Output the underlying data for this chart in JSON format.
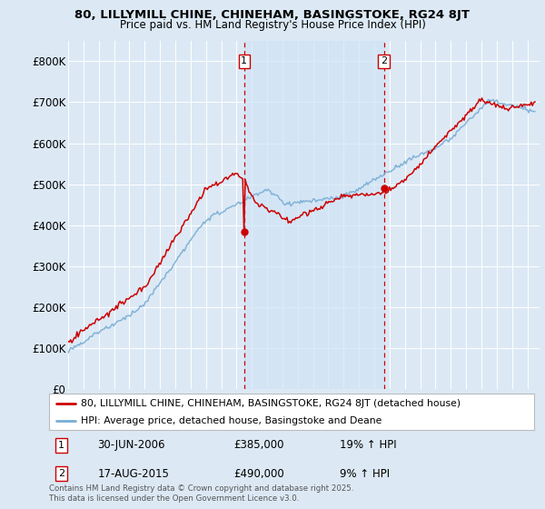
{
  "title1": "80, LILLYMILL CHINE, CHINEHAM, BASINGSTOKE, RG24 8JT",
  "title2": "Price paid vs. HM Land Registry's House Price Index (HPI)",
  "bg_color": "#dce9f5",
  "legend_label_red": "80, LILLYMILL CHINE, CHINEHAM, BASINGSTOKE, RG24 8JT (detached house)",
  "legend_label_blue": "HPI: Average price, detached house, Basingstoke and Deane",
  "footnote": "Contains HM Land Registry data © Crown copyright and database right 2025.\nThis data is licensed under the Open Government Licence v3.0.",
  "marker1_date": "30-JUN-2006",
  "marker1_price": "£385,000",
  "marker1_hpi": "19% ↑ HPI",
  "marker2_date": "17-AUG-2015",
  "marker2_price": "£490,000",
  "marker2_hpi": "9% ↑ HPI",
  "ylim": [
    0,
    850000
  ],
  "yticks": [
    0,
    100000,
    200000,
    300000,
    400000,
    500000,
    600000,
    700000,
    800000
  ],
  "ytick_labels": [
    "£0",
    "£100K",
    "£200K",
    "£300K",
    "£400K",
    "£500K",
    "£600K",
    "£700K",
    "£800K"
  ],
  "red_color": "#cc0000",
  "blue_color": "#7aadd4",
  "blue_fill": "#d0e4f5",
  "marker_box_color": "#cc0000",
  "dashed_line_color": "#cc0000",
  "marker1_x": 2006.5,
  "marker1_y": 385000,
  "marker2_x": 2015.63,
  "marker2_y": 490000,
  "xlim_start": 1995,
  "xlim_end": 2025.8
}
